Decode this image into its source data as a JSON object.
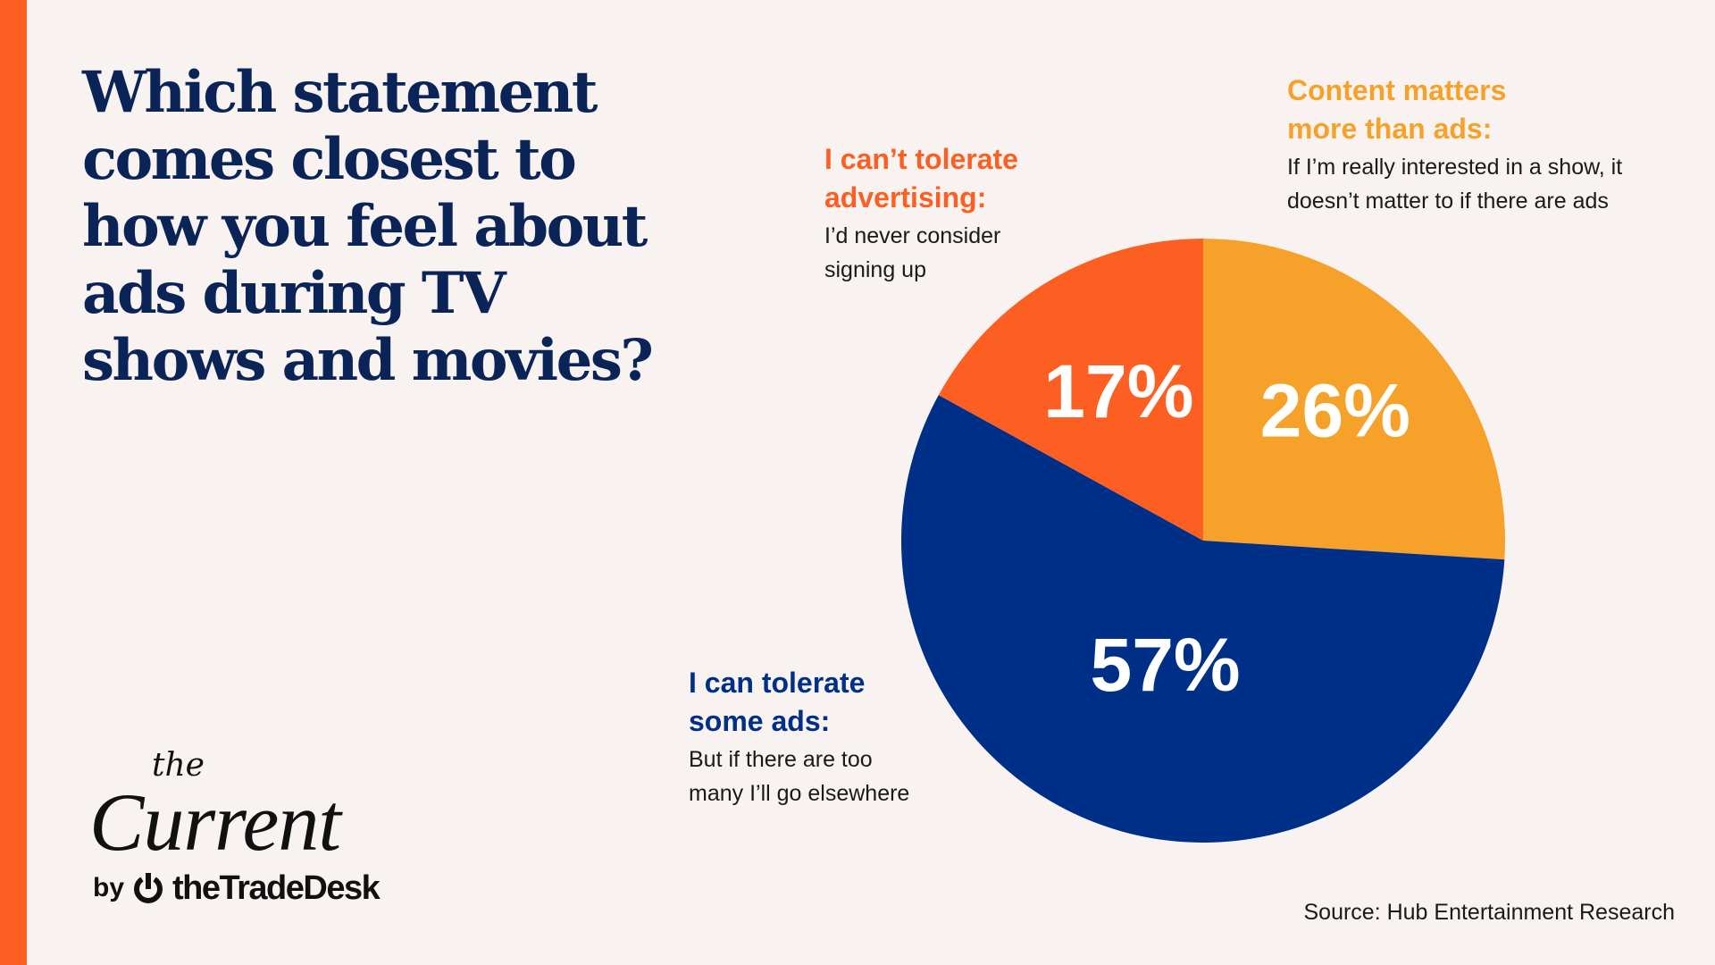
{
  "title": "Which statement comes closest to how you feel about ads during TV shows and movies?",
  "colors": {
    "accent": "#FC5F21",
    "title": "#0B2458",
    "background": "#F8F3F0"
  },
  "chart_data": {
    "type": "pie",
    "title": "Which statement comes closest to how you feel about ads during TV shows and movies?",
    "start": "12 o'clock, clockwise",
    "slices": [
      {
        "label": "Content matters more than ads:",
        "description": "If I'm really interested in a show, it doesn't matter to if there are ads",
        "value": 26,
        "display": "26%",
        "color": "#F6A22A"
      },
      {
        "label": "I can tolerate some ads:",
        "description": "But if there are too many I'll go elsewhere",
        "value": 57,
        "display": "57%",
        "color": "#002F87"
      },
      {
        "label": "I can't tolerate advertising:",
        "description": "I'd never consider signing up",
        "value": 17,
        "display": "17%",
        "color": "#FC5F21"
      }
    ]
  },
  "labels": {
    "yellow": {
      "heading": [
        "Content matters",
        "more than ads:"
      ],
      "body": [
        "If I’m really interested in a show, it",
        "doesn’t matter to if there are ads"
      ]
    },
    "red": {
      "heading": [
        "I can’t tolerate",
        "advertising:"
      ],
      "body": [
        "I’d never consider",
        "signing up"
      ]
    },
    "blue": {
      "heading": [
        "I can tolerate",
        "some ads:"
      ],
      "body": [
        "But if there are too",
        "many I’ll go elsewhere"
      ]
    }
  },
  "source": "Source: Hub Entertainment Research",
  "logo": {
    "the": "the",
    "current": "Current",
    "by": "by",
    "brand": "theTradeDesk"
  }
}
